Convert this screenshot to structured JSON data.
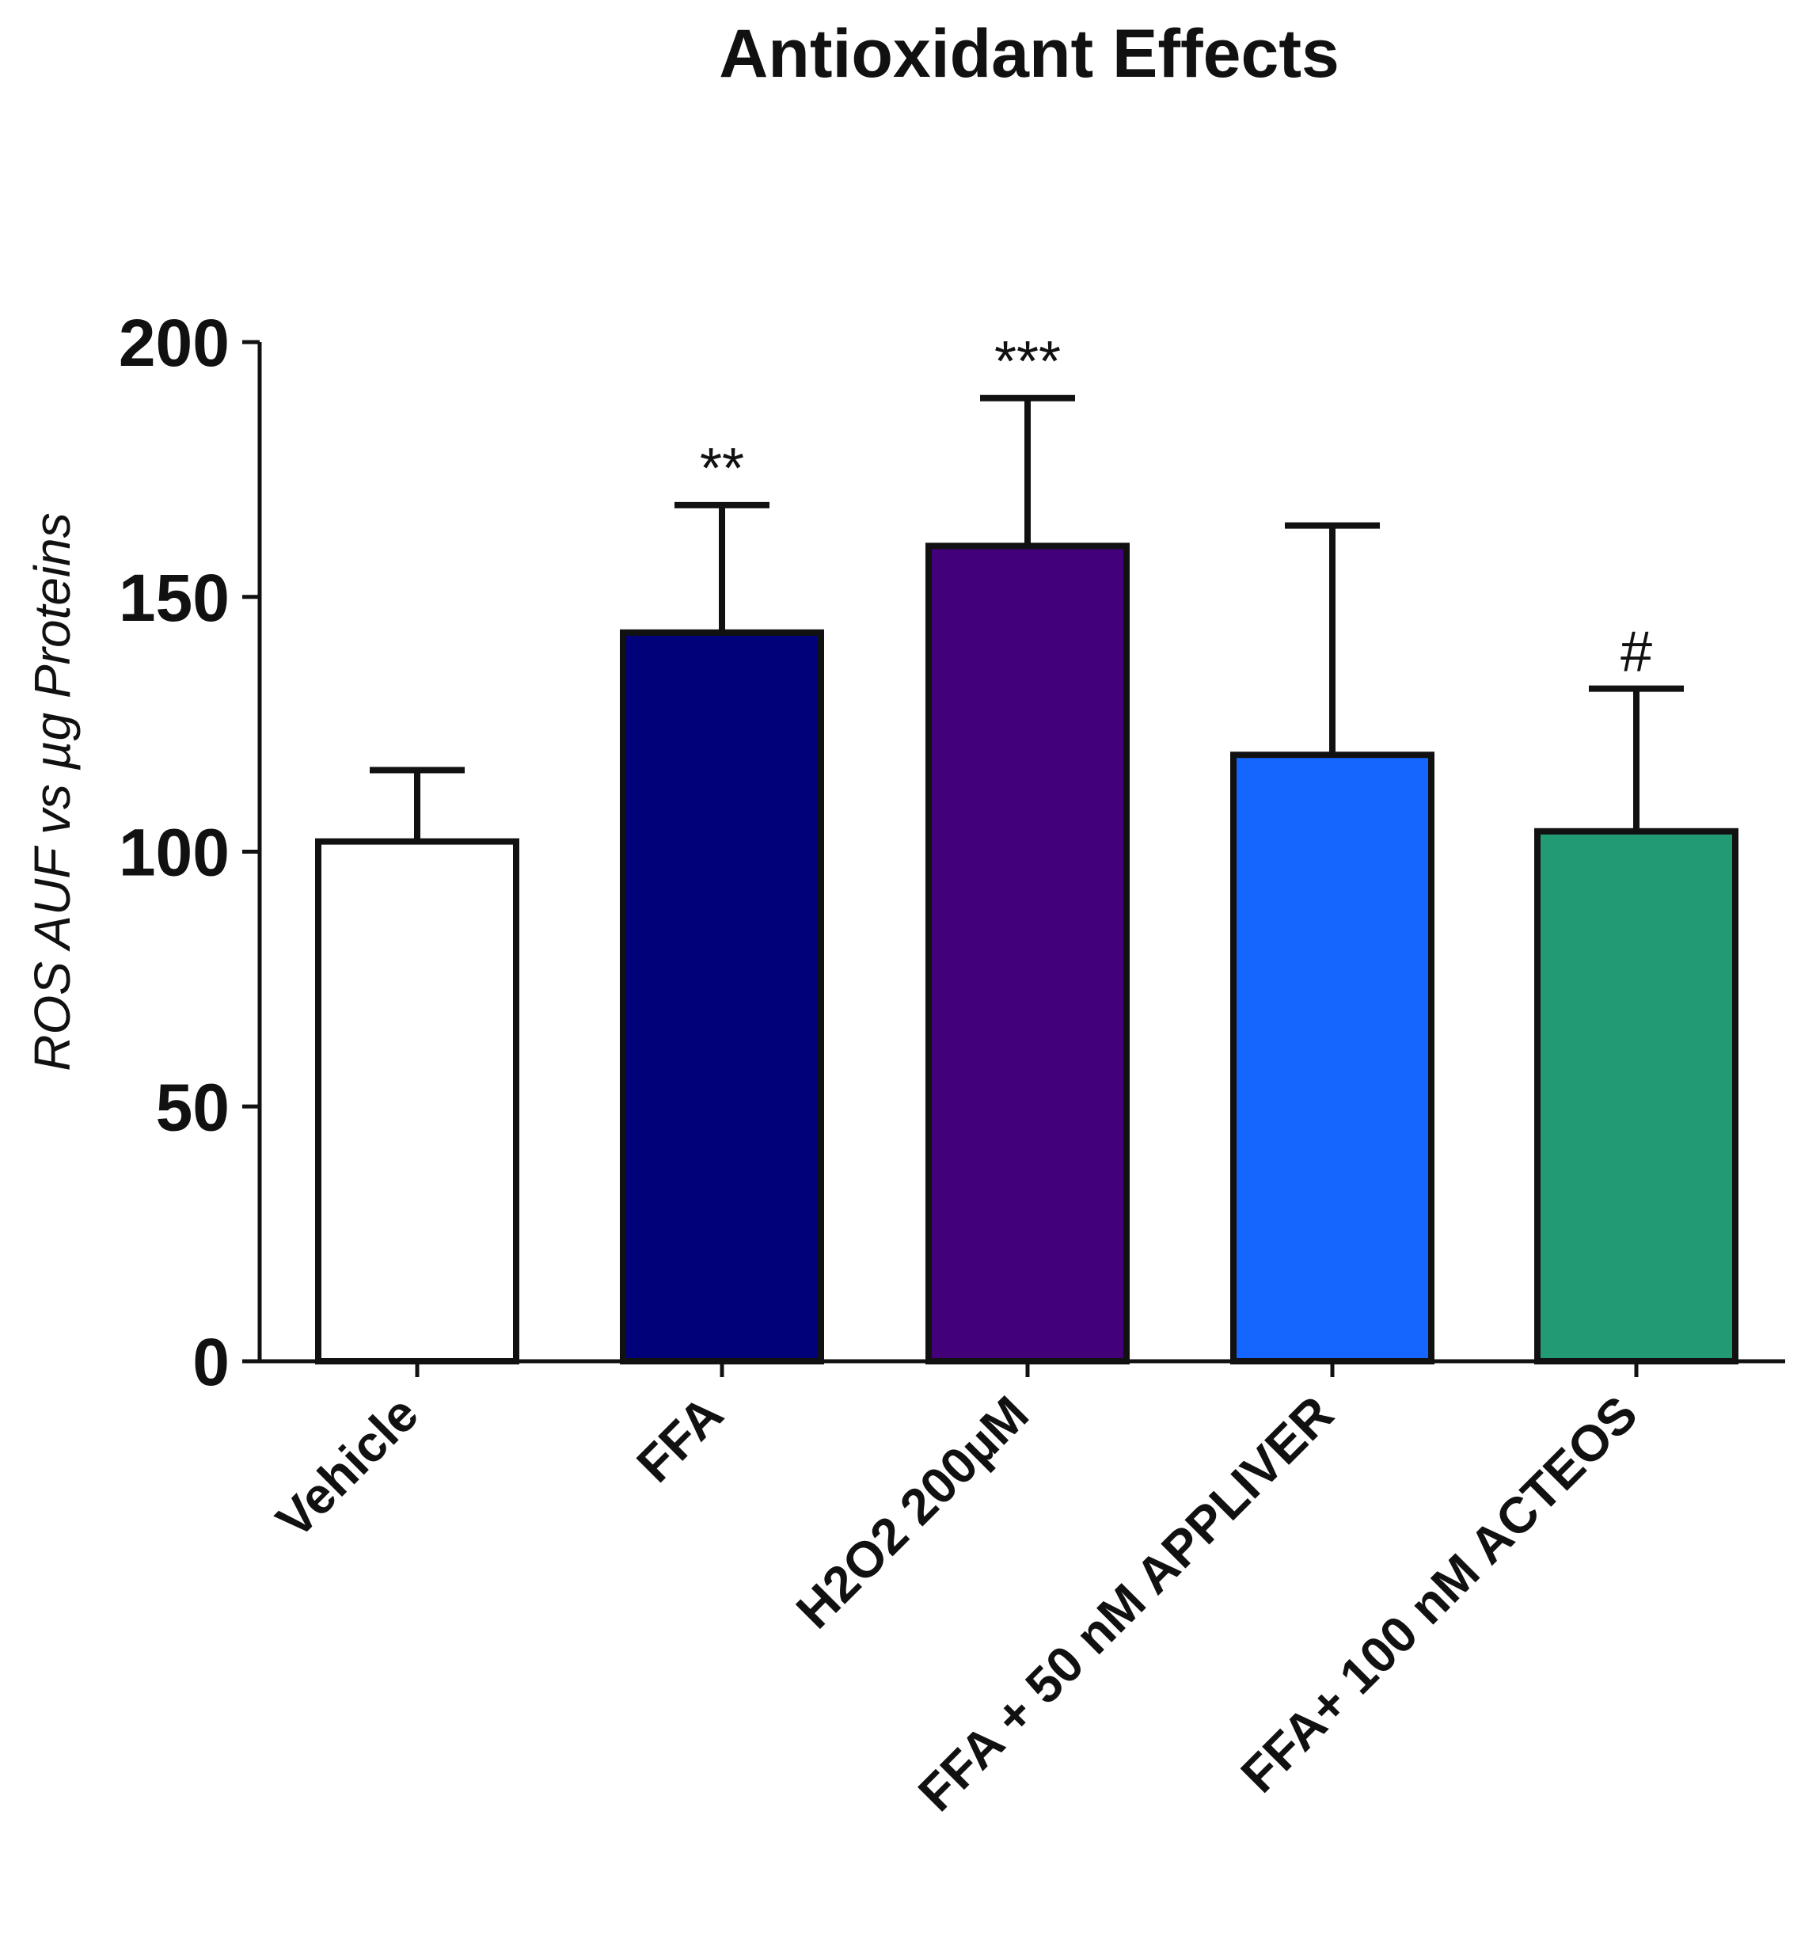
{
  "chart_data": {
    "type": "bar",
    "title": "Antioxidant Effects",
    "xlabel": "",
    "ylabel": "ROS AUF vs µg  Proteins",
    "ylim": [
      0,
      200
    ],
    "yticks": [
      0,
      50,
      100,
      150,
      200
    ],
    "grid": false,
    "categories": [
      "Vehicle",
      "FFA",
      "H2O2 200µM",
      "FFA + 50 nM APPLIVER",
      "FFA+ 100 nM ACTEOS"
    ],
    "values": [
      102,
      143,
      160,
      119,
      104
    ],
    "errors": [
      14,
      25,
      29,
      45,
      28
    ],
    "colors": [
      "#ffffff",
      "#01017a",
      "#420079",
      "#1466fe",
      "#229a74"
    ],
    "annotations": [
      "",
      "**",
      "***",
      "",
      "#"
    ]
  }
}
